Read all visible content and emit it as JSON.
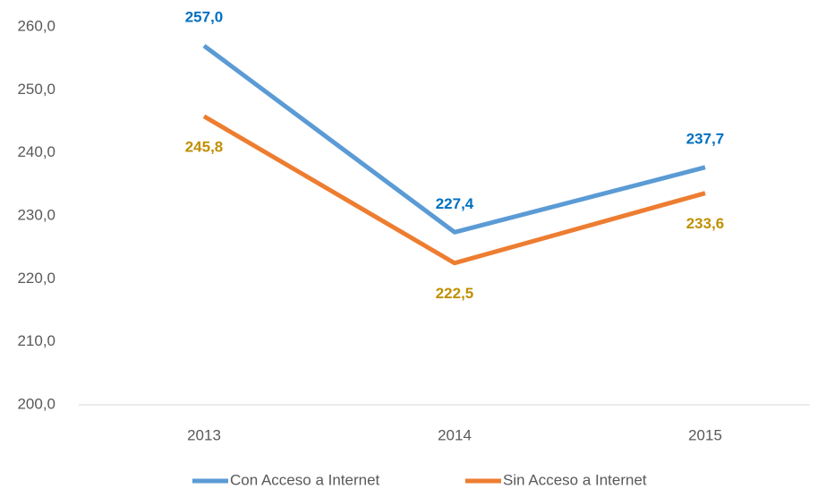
{
  "chart_data": {
    "type": "line",
    "categories": [
      "2013",
      "2014",
      "2015"
    ],
    "series": [
      {
        "name": "Con Acceso a Internet",
        "color": "#5b9bd5",
        "label_color": "#0070c0",
        "label_position": "above",
        "values": [
          257.0,
          227.4,
          237.7
        ],
        "value_labels": [
          "257,0",
          "227,4",
          "237,7"
        ]
      },
      {
        "name": "Sin Acceso a Internet",
        "color": "#ed7d31",
        "label_color": "#bf9000",
        "label_position": "below",
        "values": [
          245.8,
          222.5,
          233.6
        ],
        "value_labels": [
          "245,8",
          "222,5",
          "233,6"
        ]
      }
    ],
    "ylim": [
      200,
      260
    ],
    "yticks": [
      {
        "value": 200,
        "label": "200,0"
      },
      {
        "value": 210,
        "label": "210,0"
      },
      {
        "value": 220,
        "label": "220,0"
      },
      {
        "value": 230,
        "label": "230,0"
      },
      {
        "value": 240,
        "label": "240,0"
      },
      {
        "value": 250,
        "label": "250,0"
      },
      {
        "value": 260,
        "label": "260,0"
      }
    ],
    "grid": false,
    "legend": "bottom"
  }
}
